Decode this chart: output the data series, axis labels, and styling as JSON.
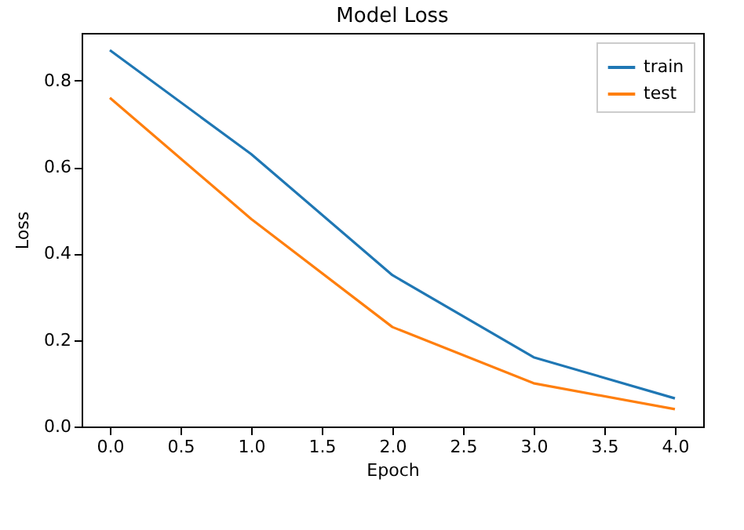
{
  "chart_data": {
    "type": "line",
    "title": "Model Loss",
    "xlabel": "Epoch",
    "ylabel": "Loss",
    "x": [
      0,
      1,
      2,
      3,
      4
    ],
    "series": [
      {
        "name": "train",
        "color": "#1f77b4",
        "values": [
          0.87,
          0.63,
          0.35,
          0.16,
          0.065
        ]
      },
      {
        "name": "test",
        "color": "#ff7f0e",
        "values": [
          0.76,
          0.48,
          0.23,
          0.1,
          0.04
        ]
      }
    ],
    "xlim": [
      -0.2,
      4.2
    ],
    "xticks": [
      {
        "value": 0,
        "label": "0.0"
      },
      {
        "value": 0.5,
        "label": "0.5"
      },
      {
        "value": 1,
        "label": "1.0"
      },
      {
        "value": 1.5,
        "label": "1.5"
      },
      {
        "value": 2,
        "label": "2.0"
      },
      {
        "value": 2.5,
        "label": "2.5"
      },
      {
        "value": 3,
        "label": "3.0"
      },
      {
        "value": 3.5,
        "label": "3.5"
      },
      {
        "value": 4,
        "label": "4.0"
      }
    ],
    "ylim": [
      0,
      0.91
    ],
    "yticks": [
      {
        "value": 0,
        "label": "0.0"
      },
      {
        "value": 0.2,
        "label": "0.2"
      },
      {
        "value": 0.4,
        "label": "0.4"
      },
      {
        "value": 0.6,
        "label": "0.6"
      },
      {
        "value": 0.8,
        "label": "0.8"
      }
    ],
    "legend": "top right",
    "grid": false
  }
}
